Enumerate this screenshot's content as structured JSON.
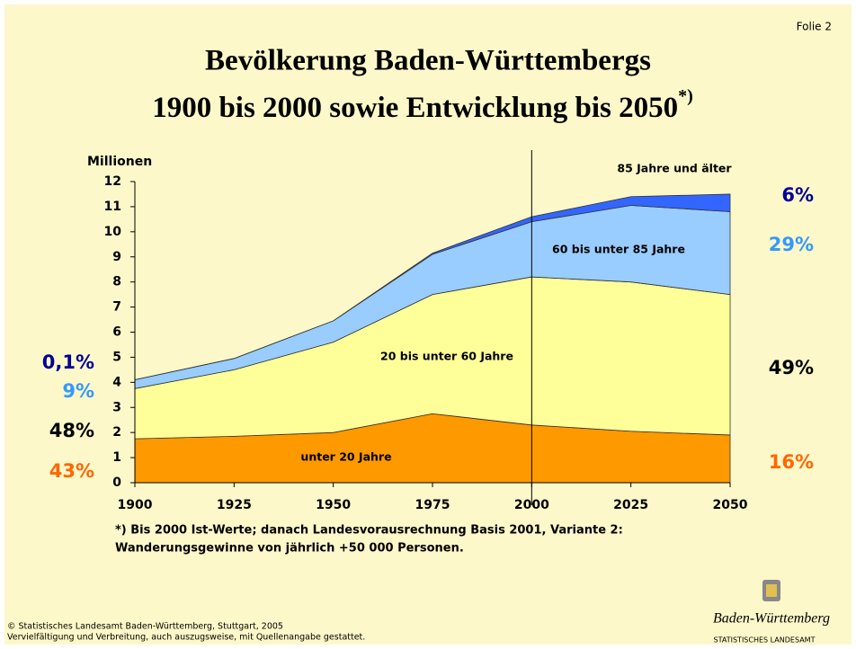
{
  "slide_number": "Folie 2",
  "chart_data": {
    "type": "stacked-area",
    "title_lines": [
      "Bevölkerung Baden-Württembergs",
      "1900 bis 2000 sowie Entwicklung bis 2050"
    ],
    "title_note": "*)",
    "ylabel": "Millionen",
    "x": [
      1900,
      1925,
      1950,
      1975,
      2000,
      2025,
      2050
    ],
    "xlim": [
      1900,
      2050
    ],
    "xticks": [
      1900,
      1925,
      1950,
      1975,
      2000,
      2025,
      2050
    ],
    "ylim": [
      0,
      12
    ],
    "yticks": [
      0,
      1,
      2,
      3,
      4,
      5,
      6,
      7,
      8,
      9,
      10,
      11,
      12
    ],
    "divider_x": 2000,
    "series": [
      {
        "name": "unter 20 Jahre",
        "color": "#ff9900",
        "values": [
          1.75,
          1.85,
          2.0,
          2.75,
          2.3,
          2.05,
          1.9
        ],
        "start_label": "43%",
        "end_label": "16%",
        "label_color": "#ff6600"
      },
      {
        "name": "20 bis unter 60 Jahre",
        "color": "#ffff99",
        "values": [
          2.0,
          2.65,
          3.6,
          4.75,
          5.9,
          5.95,
          5.6
        ],
        "start_label": "48%",
        "end_label": "49%",
        "label_color": "#000000"
      },
      {
        "name": "60 bis unter 85 Jahre",
        "color": "#99ccff",
        "values": [
          0.35,
          0.45,
          0.85,
          1.6,
          2.2,
          3.05,
          3.3
        ],
        "start_label": "9%",
        "end_label": "29%",
        "label_color": "#3399ff"
      },
      {
        "name": "85 Jahre und älter",
        "color": "#3366ff",
        "values": [
          0,
          0,
          0,
          0.05,
          0.2,
          0.35,
          0.7
        ],
        "start_label": "0,1%",
        "end_label": "6%",
        "label_color": "#000099"
      }
    ],
    "footnote": [
      "*) Bis 2000 Ist-Werte; danach Landesvorausrechnung Basis 2001, Variante 2:",
      "Wanderungsgewinne von jährlich +50 000 Personen."
    ]
  },
  "footer": {
    "copyright": [
      "© Statistisches Landesamt Baden-Württemberg, Stuttgart, 2005",
      "Vervielfältigung und Verbreitung, auch auszugsweise, mit Quellenangabe gestattet."
    ],
    "logo_text": "Baden-Württemberg",
    "logo_sub": "STATISTISCHES LANDESAMT"
  }
}
